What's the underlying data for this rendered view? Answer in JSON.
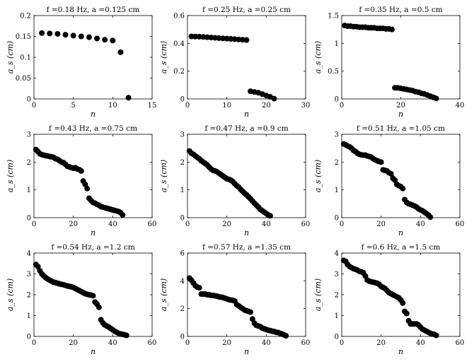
{
  "chart_data": [
    {
      "type": "scatter",
      "title": "f =0.18 Hz, a =0.125 cm",
      "xlabel": "n",
      "ylabel": "a_s (cm)",
      "xlim": [
        0,
        15
      ],
      "ylim": [
        0,
        0.2
      ],
      "xticks": [
        0,
        5,
        10,
        15
      ],
      "yticks": [
        0,
        0.05,
        0.1,
        0.15,
        0.2
      ],
      "x": [
        1,
        2,
        3,
        4,
        5,
        6,
        7,
        8,
        9,
        10,
        11,
        12
      ],
      "y": [
        0.158,
        0.157,
        0.156,
        0.154,
        0.152,
        0.15,
        0.148,
        0.145,
        0.142,
        0.14,
        0.112,
        0.003
      ]
    },
    {
      "type": "scatter",
      "title": "f =0.25 Hz, a =0.25 cm",
      "xlabel": "n",
      "ylabel": "a_s (cm)",
      "xlim": [
        0,
        30
      ],
      "ylim": [
        0,
        0.6
      ],
      "xticks": [
        0,
        10,
        20,
        30
      ],
      "yticks": [
        0,
        0.2,
        0.4,
        0.6
      ],
      "x": [
        1,
        2,
        3,
        4,
        5,
        6,
        7,
        8,
        9,
        10,
        11,
        12,
        13,
        14,
        15,
        16,
        17,
        18,
        19,
        20,
        21,
        22
      ],
      "y": [
        0.45,
        0.449,
        0.448,
        0.446,
        0.444,
        0.442,
        0.44,
        0.438,
        0.436,
        0.434,
        0.432,
        0.43,
        0.428,
        0.426,
        0.424,
        0.055,
        0.05,
        0.045,
        0.035,
        0.025,
        0.015,
        0.002
      ]
    },
    {
      "type": "scatter",
      "title": "f =0.35 Hz, a =0.5 cm",
      "xlabel": "n",
      "ylabel": "a_s (cm)",
      "xlim": [
        0,
        40
      ],
      "ylim": [
        0,
        1.5
      ],
      "xticks": [
        0,
        20,
        40
      ],
      "yticks": [
        0,
        0.5,
        1,
        1.5
      ],
      "x": [
        1,
        2,
        3,
        4,
        5,
        6,
        7,
        8,
        9,
        10,
        11,
        12,
        13,
        14,
        15,
        16,
        17,
        18,
        19,
        20,
        21,
        22,
        23,
        24,
        25,
        26,
        27,
        28,
        29,
        30,
        31,
        32
      ],
      "y": [
        1.32,
        1.31,
        1.31,
        1.3,
        1.3,
        1.29,
        1.29,
        1.29,
        1.28,
        1.28,
        1.28,
        1.27,
        1.27,
        1.27,
        1.26,
        1.26,
        1.25,
        0.2,
        0.2,
        0.19,
        0.18,
        0.17,
        0.16,
        0.15,
        0.13,
        0.12,
        0.1,
        0.09,
        0.07,
        0.05,
        0.03,
        0.01
      ]
    },
    {
      "type": "scatter",
      "title": "f =0.43 Hz, a =0.75 cm",
      "xlabel": "n",
      "ylabel": "a_s (cm)",
      "xlim": [
        0,
        60
      ],
      "ylim": [
        0,
        3
      ],
      "xticks": [
        0,
        20,
        40,
        60
      ],
      "yticks": [
        0,
        1,
        2,
        3
      ],
      "x": [
        1,
        2,
        3,
        4,
        5,
        6,
        7,
        8,
        9,
        10,
        11,
        12,
        13,
        14,
        15,
        16,
        17,
        18,
        19,
        20,
        21,
        22,
        23,
        24,
        25,
        26,
        27,
        28,
        29,
        30,
        31,
        32,
        33,
        34,
        35,
        36,
        37,
        38,
        39,
        40,
        41,
        42,
        43,
        44,
        45
      ],
      "y": [
        2.45,
        2.38,
        2.3,
        2.27,
        2.25,
        2.23,
        2.22,
        2.2,
        2.19,
        2.17,
        2.12,
        2.1,
        2.05,
        2.0,
        1.98,
        1.92,
        1.85,
        1.83,
        1.8,
        1.78,
        1.8,
        1.75,
        1.73,
        1.68,
        1.32,
        1.2,
        1.05,
        0.7,
        0.62,
        0.55,
        0.52,
        0.48,
        0.45,
        0.4,
        0.38,
        0.36,
        0.34,
        0.32,
        0.3,
        0.28,
        0.26,
        0.24,
        0.22,
        0.18,
        0.1
      ]
    },
    {
      "type": "scatter",
      "title": "f =0.47 Hz, a =0.9 cm",
      "xlabel": "n",
      "ylabel": "a_s (cm)",
      "xlim": [
        0,
        60
      ],
      "ylim": [
        0,
        3
      ],
      "xticks": [
        0,
        20,
        40,
        60
      ],
      "yticks": [
        0,
        1,
        2,
        3
      ],
      "x": [
        1,
        2,
        3,
        4,
        5,
        6,
        7,
        8,
        9,
        10,
        11,
        12,
        13,
        14,
        15,
        16,
        17,
        18,
        19,
        20,
        21,
        22,
        23,
        24,
        25,
        26,
        27,
        28,
        29,
        30,
        31,
        32,
        33,
        34,
        35,
        36,
        37,
        38,
        39,
        40,
        41,
        42
      ],
      "y": [
        2.4,
        2.32,
        2.28,
        2.22,
        2.17,
        2.12,
        2.05,
        2.0,
        1.95,
        1.9,
        1.82,
        1.75,
        1.7,
        1.68,
        1.65,
        1.6,
        1.55,
        1.5,
        1.45,
        1.4,
        1.38,
        1.35,
        1.3,
        1.22,
        1.15,
        1.1,
        1.02,
        0.95,
        0.88,
        0.82,
        0.75,
        0.68,
        0.6,
        0.52,
        0.45,
        0.38,
        0.3,
        0.25,
        0.2,
        0.15,
        0.1,
        0.07
      ]
    },
    {
      "type": "scatter",
      "title": "f =0.51 Hz, a =1.05 cm",
      "xlabel": "n",
      "ylabel": "a_s (cm)",
      "xlim": [
        0,
        60
      ],
      "ylim": [
        0,
        3
      ],
      "xticks": [
        0,
        20,
        40,
        60
      ],
      "yticks": [
        0,
        1,
        2,
        3
      ],
      "x": [
        1,
        2,
        3,
        4,
        5,
        6,
        7,
        8,
        9,
        10,
        11,
        12,
        13,
        14,
        15,
        16,
        17,
        18,
        19,
        20,
        21,
        22,
        23,
        24,
        25,
        26,
        27,
        28,
        29,
        30,
        31,
        32,
        33,
        34,
        35,
        36,
        37,
        38,
        39,
        40,
        41,
        42,
        43,
        44,
        45
      ],
      "y": [
        2.65,
        2.62,
        2.58,
        2.55,
        2.5,
        2.42,
        2.38,
        2.32,
        2.28,
        2.26,
        2.25,
        2.25,
        2.22,
        2.2,
        2.18,
        2.12,
        2.08,
        2.05,
        2.02,
        2.0,
        1.72,
        1.7,
        1.68,
        1.62,
        1.58,
        1.42,
        1.35,
        1.2,
        1.15,
        1.12,
        1.05,
        0.65,
        0.55,
        0.5,
        0.48,
        0.45,
        0.42,
        0.38,
        0.32,
        0.28,
        0.25,
        0.2,
        0.15,
        0.1,
        0.02
      ]
    },
    {
      "type": "scatter",
      "title": "f =0.54 Hz, a =1.2 cm",
      "xlabel": "n",
      "ylabel": "a_s (cm)",
      "xlim": [
        0,
        60
      ],
      "ylim": [
        0,
        4
      ],
      "xticks": [
        0,
        20,
        40,
        60
      ],
      "yticks": [
        0,
        1,
        2,
        3,
        4
      ],
      "x": [
        1,
        2,
        3,
        4,
        5,
        6,
        7,
        8,
        9,
        10,
        11,
        12,
        13,
        14,
        15,
        16,
        17,
        18,
        19,
        20,
        21,
        22,
        23,
        24,
        25,
        26,
        27,
        28,
        29,
        30,
        31,
        32,
        33,
        34,
        35,
        36,
        37,
        38,
        39,
        40,
        41,
        42,
        43,
        44,
        45,
        46,
        47
      ],
      "y": [
        3.45,
        3.35,
        3.15,
        3.0,
        2.9,
        2.82,
        2.75,
        2.7,
        2.65,
        2.6,
        2.58,
        2.55,
        2.52,
        2.5,
        2.48,
        2.45,
        2.42,
        2.4,
        2.38,
        2.35,
        2.3,
        2.25,
        2.2,
        2.15,
        2.1,
        2.05,
        2.02,
        2.0,
        1.98,
        1.95,
        1.65,
        1.55,
        1.4,
        0.8,
        0.65,
        0.55,
        0.5,
        0.45,
        0.38,
        0.32,
        0.25,
        0.2,
        0.15,
        0.12,
        0.1,
        0.08,
        0.05
      ]
    },
    {
      "type": "scatter",
      "title": "f =0.57 Hz, a =1.35 cm",
      "xlabel": "n",
      "ylabel": "a_s (cm)",
      "xlim": [
        0,
        60
      ],
      "ylim": [
        0,
        6
      ],
      "xticks": [
        0,
        20,
        40,
        60
      ],
      "yticks": [
        0,
        2,
        4,
        6
      ],
      "x": [
        1,
        2,
        3,
        4,
        5,
        6,
        7,
        8,
        9,
        10,
        11,
        12,
        13,
        14,
        15,
        16,
        17,
        18,
        19,
        20,
        21,
        22,
        23,
        24,
        25,
        26,
        27,
        28,
        29,
        30,
        31,
        32,
        33,
        34,
        35,
        36,
        37,
        38,
        39,
        40,
        41,
        42,
        43,
        44,
        45,
        46,
        47,
        48,
        49,
        50
      ],
      "y": [
        4.2,
        4.05,
        3.85,
        3.65,
        3.55,
        3.5,
        3.05,
        3.05,
        3.05,
        3.0,
        3.0,
        2.95,
        2.95,
        2.92,
        2.9,
        2.85,
        2.82,
        2.8,
        2.75,
        2.7,
        2.65,
        2.62,
        2.6,
        2.55,
        2.3,
        2.2,
        2.1,
        2.0,
        1.9,
        1.85,
        1.8,
        1.75,
        1.25,
        0.95,
        0.8,
        0.75,
        0.7,
        0.6,
        0.55,
        0.5,
        0.45,
        0.42,
        0.38,
        0.35,
        0.3,
        0.28,
        0.22,
        0.18,
        0.12,
        0.05
      ]
    },
    {
      "type": "scatter",
      "title": "f =0.6 Hz, a =1.5 cm",
      "xlabel": "n",
      "ylabel": "a_s (cm)",
      "xlim": [
        0,
        60
      ],
      "ylim": [
        0,
        4
      ],
      "xticks": [
        0,
        20,
        40,
        60
      ],
      "yticks": [
        0,
        1,
        2,
        3,
        4
      ],
      "x": [
        1,
        2,
        3,
        4,
        5,
        6,
        7,
        8,
        9,
        10,
        11,
        12,
        13,
        14,
        15,
        16,
        17,
        18,
        19,
        20,
        21,
        22,
        23,
        24,
        25,
        26,
        27,
        28,
        29,
        30,
        31,
        32,
        33,
        34,
        35,
        36,
        37,
        38,
        39,
        40,
        41,
        42,
        43,
        44,
        45,
        46,
        47,
        48
      ],
      "y": [
        3.65,
        3.6,
        3.45,
        3.35,
        3.3,
        3.25,
        3.22,
        3.18,
        3.12,
        3.1,
        3.05,
        2.9,
        2.7,
        2.65,
        2.62,
        2.6,
        2.58,
        2.55,
        2.5,
        2.4,
        2.35,
        2.3,
        2.2,
        2.1,
        2.05,
        2.0,
        1.95,
        1.9,
        1.85,
        1.75,
        1.6,
        1.2,
        1.1,
        0.75,
        0.6,
        0.6,
        0.6,
        0.6,
        0.55,
        0.45,
        0.35,
        0.3,
        0.25,
        0.2,
        0.15,
        0.12,
        0.1,
        0.05
      ]
    }
  ]
}
